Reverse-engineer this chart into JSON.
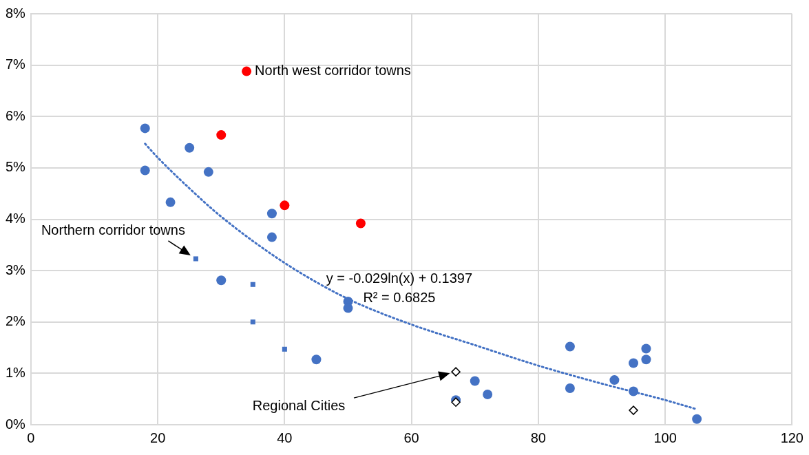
{
  "chart_data": {
    "type": "scatter",
    "xlim": [
      0,
      120
    ],
    "xticks": [
      0,
      20,
      40,
      60,
      80,
      100,
      120
    ],
    "ylim": [
      0,
      8
    ],
    "yticks": [
      {
        "value": 0,
        "label": "0%"
      },
      {
        "value": 1,
        "label": "1%"
      },
      {
        "value": 2,
        "label": "2%"
      },
      {
        "value": 3,
        "label": "3%"
      },
      {
        "value": 4,
        "label": "4%"
      },
      {
        "value": 5,
        "label": "5%"
      },
      {
        "value": 6,
        "label": "6%"
      },
      {
        "value": 7,
        "label": "7%"
      },
      {
        "value": 8,
        "label": "8%"
      }
    ],
    "grid": true,
    "series": [
      {
        "marker": "circle",
        "color": "#4472c4",
        "x": [
          18,
          18,
          22,
          25,
          28,
          30,
          38,
          38,
          45,
          50,
          50,
          67,
          70,
          72,
          85,
          85,
          92,
          95,
          95,
          97,
          97,
          105
        ],
        "values": [
          5.77,
          4.95,
          4.33,
          5.39,
          4.92,
          2.81,
          4.11,
          3.65,
          1.27,
          2.4,
          2.27,
          0.48,
          0.85,
          0.59,
          1.52,
          0.71,
          0.87,
          1.2,
          0.65,
          1.48,
          1.27,
          0.11
        ]
      },
      {
        "marker": "circle",
        "color": "#ff0000",
        "x": [
          30,
          34,
          40,
          52
        ],
        "values": [
          5.64,
          6.88,
          4.27,
          3.92
        ]
      },
      {
        "marker": "square",
        "color": "#4472c4",
        "x": [
          26,
          35,
          35,
          40
        ],
        "values": [
          3.23,
          2.73,
          2.0,
          1.47
        ]
      },
      {
        "marker": "diamond",
        "color": "#000000",
        "x": [
          67,
          67,
          95
        ],
        "values": [
          1.03,
          0.44,
          0.28
        ]
      },
      {
        "type": "line",
        "line_style": "dotted",
        "marker": "none",
        "color": "#4472c4",
        "x": [
          18,
          20,
          25,
          30,
          40,
          50,
          60,
          70,
          80,
          90,
          100,
          105
        ],
        "values": [
          5.47,
          5.2,
          4.6,
          4.05,
          3.15,
          2.45,
          1.95,
          1.55,
          1.15,
          0.8,
          0.48,
          0.3
        ]
      }
    ],
    "annotations": [
      {
        "text": "North west corridor towns",
        "x": 34,
        "y": 6.88
      },
      {
        "text": "Northern corridor towns",
        "x": 26,
        "y": 3.23
      },
      "y = -0.029ln(x) + 0.1397",
      "R² = 0.6825",
      "Regional Cities"
    ]
  }
}
